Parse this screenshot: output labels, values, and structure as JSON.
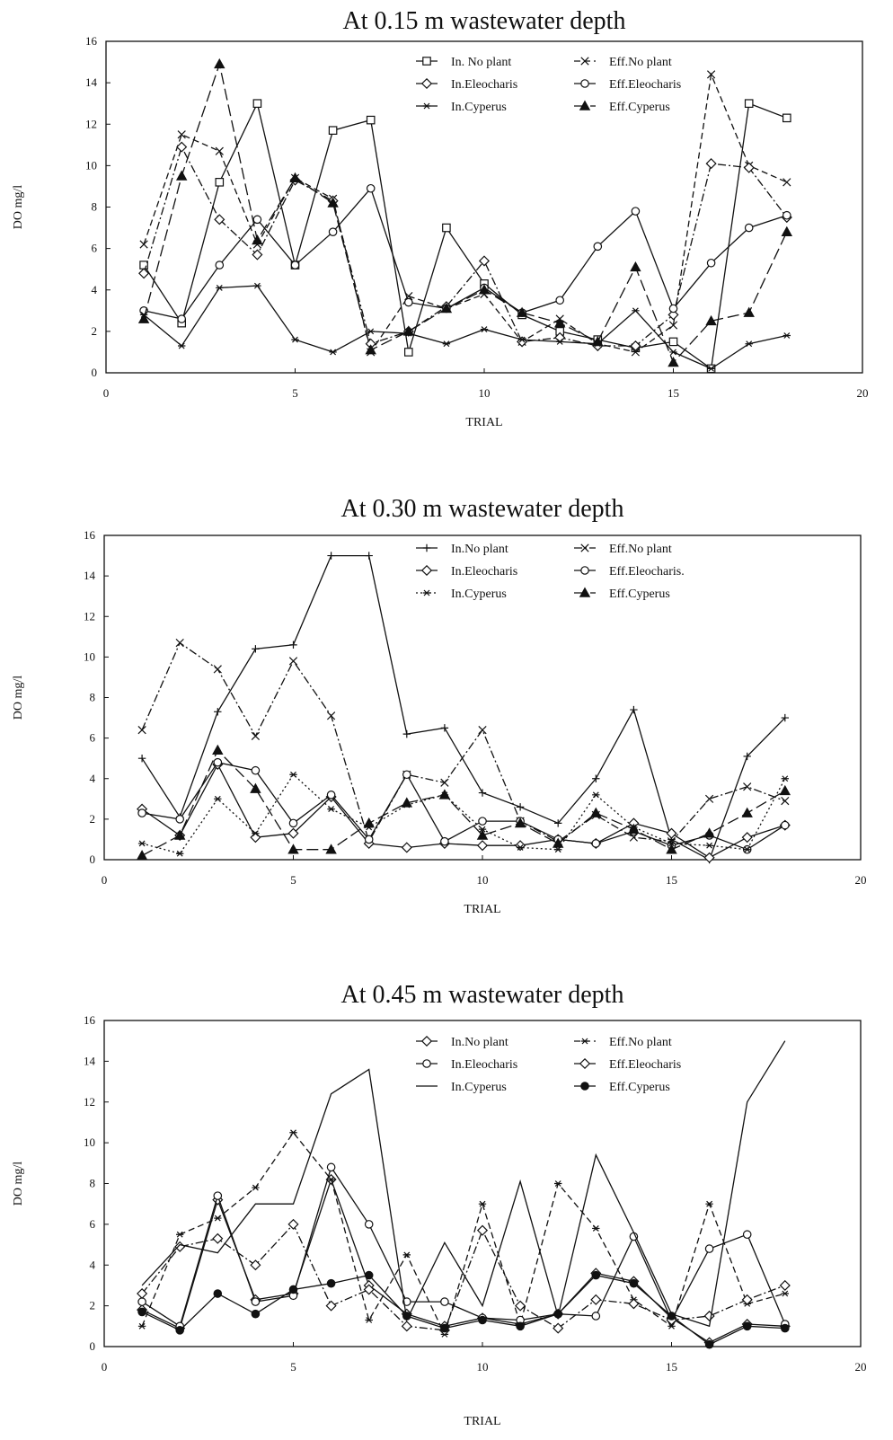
{
  "chart_data": [
    {
      "type": "line",
      "title": "At 0.15 m wastewater depth",
      "xlabel": "TRIAL",
      "ylabel": "DO mg/l",
      "xlim": [
        0,
        20
      ],
      "ylim": [
        0,
        16
      ],
      "xticks": [
        0,
        5,
        10,
        15,
        20
      ],
      "yticks": [
        0,
        2,
        4,
        6,
        8,
        10,
        12,
        14,
        16
      ],
      "grid": false,
      "legend": "top-center, two columns",
      "x": [
        1,
        2,
        3,
        4,
        5,
        6,
        7,
        8,
        9,
        10,
        11,
        12,
        13,
        14,
        15,
        16,
        17,
        18
      ],
      "series": [
        {
          "name": "In. No plant",
          "marker": "square",
          "dash": "solid",
          "values": [
            5.2,
            2.4,
            9.2,
            13.0,
            5.2,
            11.7,
            12.2,
            1.0,
            7.0,
            4.3,
            2.8,
            2.0,
            1.6,
            1.2,
            1.5,
            0.2,
            13.0,
            12.3
          ]
        },
        {
          "name": "Eff.No plant",
          "marker": "x",
          "dash": "dashed",
          "values": [
            6.2,
            11.5,
            10.7,
            6.2,
            9.4,
            8.4,
            1.0,
            3.7,
            3.1,
            3.8,
            1.5,
            2.6,
            1.4,
            1.0,
            2.3,
            14.4,
            10.0,
            9.2
          ]
        },
        {
          "name": "In.Eleocharis",
          "marker": "diamond",
          "dash": "dashdot",
          "values": [
            4.8,
            10.9,
            7.4,
            5.7,
            9.3,
            8.3,
            1.4,
            2.0,
            3.2,
            5.4,
            1.5,
            1.7,
            1.3,
            1.3,
            2.8,
            10.1,
            9.9,
            7.5
          ]
        },
        {
          "name": "Eff.Eleocharis",
          "marker": "circle",
          "dash": "solid",
          "values": [
            3.0,
            2.6,
            5.2,
            7.4,
            5.2,
            6.8,
            8.9,
            3.4,
            3.1,
            4.1,
            2.9,
            3.5,
            6.1,
            7.8,
            3.1,
            5.3,
            7.0,
            7.6
          ]
        },
        {
          "name": "In.Cyperus",
          "marker": "star",
          "dash": "solid",
          "values": [
            2.8,
            1.3,
            4.1,
            4.2,
            1.6,
            1.0,
            2.0,
            1.9,
            1.4,
            2.1,
            1.6,
            1.5,
            1.4,
            3.0,
            1.0,
            0.2,
            1.4,
            1.8
          ]
        },
        {
          "name": "Eff.Cyperus",
          "marker": "triangle",
          "dash": "longdash",
          "values": [
            2.6,
            9.5,
            14.9,
            6.4,
            9.4,
            8.2,
            1.1,
            2.0,
            3.1,
            4.0,
            2.9,
            2.4,
            1.5,
            5.1,
            0.5,
            2.5,
            2.9,
            6.8
          ]
        }
      ]
    },
    {
      "type": "line",
      "title": "At 0.30 m wastewater depth",
      "xlabel": "TRIAL",
      "ylabel": "DO mg/l",
      "xlim": [
        0,
        20
      ],
      "ylim": [
        0,
        16
      ],
      "xticks": [
        0,
        5,
        10,
        15,
        20
      ],
      "yticks": [
        0,
        2,
        4,
        6,
        8,
        10,
        12,
        14,
        16
      ],
      "grid": false,
      "legend": "top-center, two columns",
      "x": [
        1,
        2,
        3,
        4,
        5,
        6,
        7,
        8,
        9,
        10,
        11,
        12,
        13,
        14,
        15,
        16,
        17,
        18
      ],
      "series": [
        {
          "name": "In.No plant",
          "marker": "plus",
          "dash": "solid",
          "values": [
            5.0,
            2.1,
            7.3,
            10.4,
            10.6,
            15.0,
            15.0,
            6.2,
            6.5,
            3.3,
            2.6,
            1.8,
            4.0,
            7.4,
            1.0,
            0.0,
            5.1,
            7.0
          ]
        },
        {
          "name": "Eff.No plant",
          "marker": "x",
          "dash": "dashdot",
          "values": [
            6.4,
            10.7,
            9.4,
            6.1,
            9.8,
            7.1,
            0.9,
            4.2,
            3.8,
            6.4,
            1.9,
            0.9,
            2.2,
            1.1,
            0.9,
            3.0,
            3.6,
            2.9
          ]
        },
        {
          "name": "In.Eleocharis",
          "marker": "diamond",
          "dash": "solid",
          "values": [
            2.5,
            1.2,
            4.7,
            1.1,
            1.3,
            3.1,
            0.8,
            0.6,
            0.8,
            0.7,
            0.7,
            1.0,
            0.8,
            1.8,
            1.3,
            0.1,
            1.1,
            1.7
          ]
        },
        {
          "name": "Eff.Eleocharis.",
          "marker": "circle",
          "dash": "solid",
          "values": [
            2.3,
            2.0,
            4.8,
            4.4,
            1.8,
            3.2,
            1.0,
            4.2,
            0.9,
            1.9,
            1.9,
            1.0,
            0.8,
            1.4,
            0.7,
            1.2,
            0.5,
            1.7
          ]
        },
        {
          "name": "In.Cyperus",
          "marker": "star",
          "dash": "dotted",
          "values": [
            0.8,
            0.3,
            3.0,
            1.3,
            4.2,
            2.5,
            1.6,
            2.7,
            3.2,
            1.5,
            0.6,
            0.5,
            3.2,
            1.6,
            0.8,
            0.7,
            0.5,
            4.0
          ]
        },
        {
          "name": "Eff.Cyperus",
          "marker": "triangle",
          "dash": "longdash",
          "values": [
            0.2,
            1.2,
            5.4,
            3.5,
            0.5,
            0.5,
            1.8,
            2.8,
            3.2,
            1.2,
            1.8,
            0.8,
            2.3,
            1.5,
            0.5,
            1.3,
            2.3,
            3.4
          ]
        }
      ]
    },
    {
      "type": "line",
      "title": "At 0.45 m wastewater depth",
      "xlabel": "TRIAL",
      "ylabel": "DO mg/l",
      "xlim": [
        0,
        20
      ],
      "ylim": [
        0,
        16
      ],
      "xticks": [
        0,
        5,
        10,
        15,
        20
      ],
      "yticks": [
        0,
        2,
        4,
        6,
        8,
        10,
        12,
        14,
        16
      ],
      "grid": false,
      "legend": "top-center, two columns",
      "x": [
        1,
        2,
        3,
        4,
        5,
        6,
        7,
        8,
        9,
        10,
        11,
        12,
        13,
        14,
        15,
        16,
        17,
        18
      ],
      "series": [
        {
          "name": "In.No plant",
          "marker": "diamond",
          "dash": "solid",
          "values": [
            1.8,
            0.9,
            7.2,
            2.3,
            2.6,
            8.2,
            3.0,
            1.6,
            1.0,
            1.4,
            1.1,
            1.6,
            3.6,
            3.2,
            1.4,
            0.2,
            1.1,
            1.0
          ]
        },
        {
          "name": "Eff.No plant",
          "marker": "star",
          "dash": "dashed",
          "values": [
            1.0,
            5.5,
            6.3,
            7.8,
            10.5,
            8.2,
            1.3,
            4.5,
            0.6,
            7.0,
            1.1,
            8.0,
            5.8,
            2.3,
            1.0,
            7.0,
            2.1,
            2.6
          ]
        },
        {
          "name": "In.Eleocharis",
          "marker": "circle",
          "dash": "solid",
          "values": [
            2.2,
            1.0,
            7.4,
            2.2,
            2.5,
            8.8,
            6.0,
            2.2,
            2.2,
            1.4,
            1.3,
            1.6,
            1.5,
            5.4,
            1.3,
            4.8,
            5.5,
            1.1
          ]
        },
        {
          "name": "Eff.Eleocharis",
          "marker": "diamond",
          "dash": "dashdot",
          "values": [
            2.6,
            4.9,
            5.3,
            4.0,
            6.0,
            2.0,
            2.8,
            1.0,
            0.8,
            5.7,
            2.0,
            0.9,
            2.3,
            2.1,
            1.3,
            1.5,
            2.3,
            3.0
          ]
        },
        {
          "name": "In.Cyperus",
          "marker": "none",
          "dash": "solid",
          "values": [
            3.0,
            5.0,
            4.6,
            7.0,
            7.0,
            12.4,
            13.6,
            1.3,
            5.1,
            2.0,
            8.1,
            1.5,
            9.4,
            5.6,
            1.6,
            1.0,
            12.0,
            15.0
          ]
        },
        {
          "name": "Eff.Cyperus",
          "marker": "dot",
          "dash": "solid",
          "values": [
            1.7,
            0.8,
            2.6,
            1.6,
            2.8,
            3.1,
            3.5,
            1.5,
            0.9,
            1.3,
            1.0,
            1.6,
            3.5,
            3.1,
            1.5,
            0.1,
            1.0,
            0.9
          ]
        }
      ]
    }
  ]
}
